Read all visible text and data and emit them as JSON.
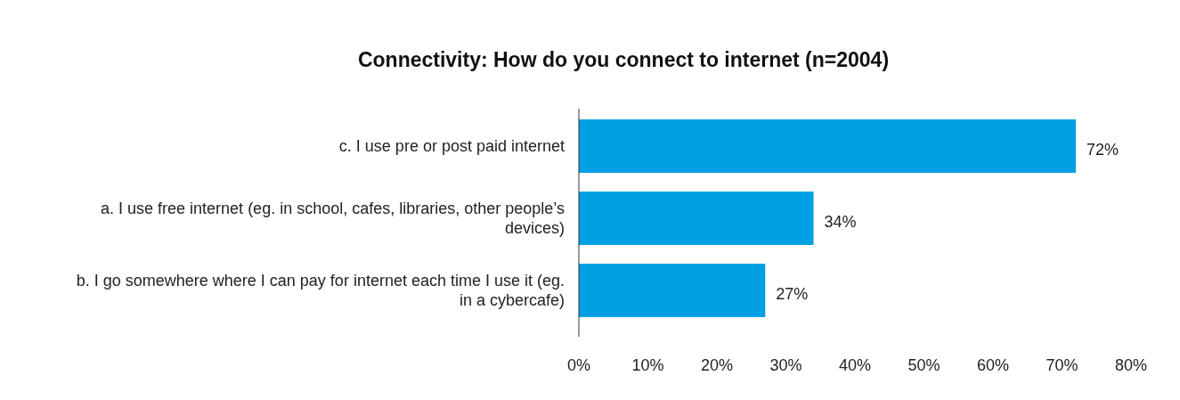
{
  "chart_data": {
    "type": "bar",
    "orientation": "horizontal",
    "title": "Connectivity: How do you connect to internet (n=2004)",
    "categories": [
      "c. I use pre or post paid internet",
      "a. I use free internet (eg. in school, cafes, libraries, other people’s devices)",
      "b. I go somewhere where I can pay for internet each time I use it (eg. in a cybercafe)"
    ],
    "values": [
      72,
      34,
      27
    ],
    "value_labels": [
      "72%",
      "34%",
      "27%"
    ],
    "color": "#009fe3",
    "xlim": [
      0,
      80
    ],
    "xticks": [
      {
        "value": 0,
        "label": "0%"
      },
      {
        "value": 10,
        "label": "10%"
      },
      {
        "value": 20,
        "label": "20%"
      },
      {
        "value": 30,
        "label": "30%"
      },
      {
        "value": 40,
        "label": "40%"
      },
      {
        "value": 50,
        "label": "50%"
      },
      {
        "value": 60,
        "label": "60%"
      },
      {
        "value": 70,
        "label": "70%"
      },
      {
        "value": 80,
        "label": "80%"
      }
    ],
    "grid": false
  }
}
